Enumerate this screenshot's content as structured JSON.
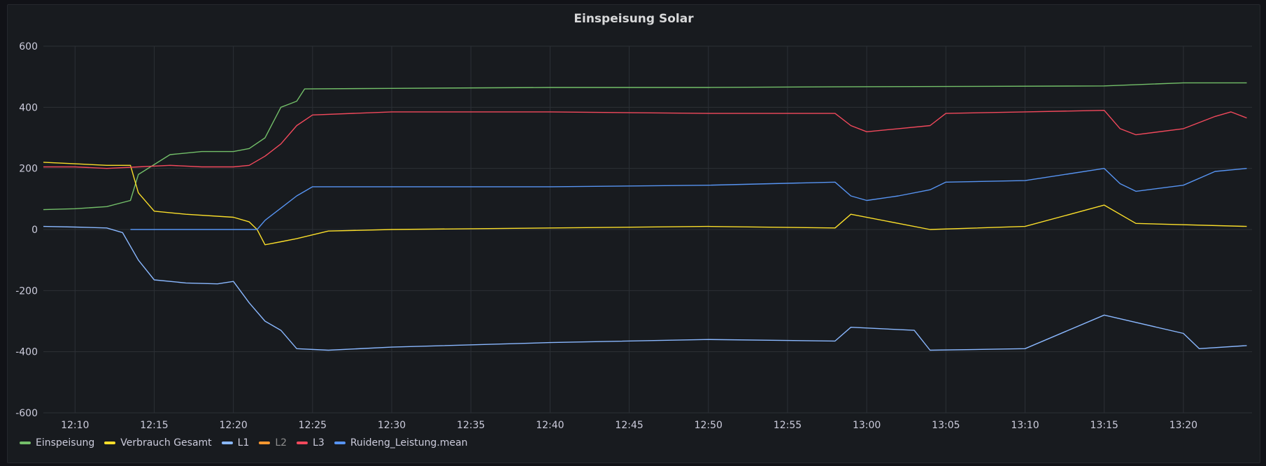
{
  "panel": {
    "title": "Einspeisung Solar"
  },
  "chart_data": {
    "type": "line",
    "title": "Einspeisung Solar",
    "xlabel": "",
    "ylabel": "",
    "ylim": [
      -600,
      600
    ],
    "yticks": [
      "600",
      "400",
      "200",
      "0",
      "-200",
      "-400",
      "-600"
    ],
    "xlim": [
      "12:08:00",
      "13:24:20"
    ],
    "xticks": [
      "12:10",
      "12:15",
      "12:20",
      "12:25",
      "12:30",
      "12:35",
      "12:40",
      "12:45",
      "12:50",
      "12:55",
      "13:00",
      "13:05",
      "13:10",
      "13:15",
      "13:20"
    ],
    "grid": true,
    "legend_position": "bottom-left",
    "series": [
      {
        "name": "Einspeisung",
        "color": "#73bf69",
        "x": [
          "12:08",
          "12:10",
          "12:12",
          "12:13:30",
          "12:14",
          "12:16",
          "12:18",
          "12:20",
          "12:21",
          "12:22",
          "12:22:30",
          "12:23",
          "12:23:30",
          "12:24",
          "12:24:30",
          "12:30",
          "12:40",
          "12:50",
          "12:58",
          "13:05",
          "13:15",
          "13:20",
          "13:24"
        ],
        "y": [
          65,
          68,
          75,
          95,
          180,
          245,
          255,
          255,
          265,
          300,
          350,
          400,
          410,
          420,
          460,
          462,
          465,
          465,
          467,
          468,
          470,
          480,
          480
        ]
      },
      {
        "name": "Verbrauch Gesamt",
        "color": "#fade2a",
        "x": [
          "12:08",
          "12:10",
          "12:12",
          "12:13:30",
          "12:14",
          "12:15",
          "12:17",
          "12:20",
          "12:21",
          "12:21:30",
          "12:22",
          "12:23",
          "12:24",
          "12:26",
          "12:30",
          "12:40",
          "12:50",
          "12:58",
          "12:59",
          "13:04",
          "13:10",
          "13:15",
          "13:17",
          "13:24"
        ],
        "y": [
          220,
          215,
          210,
          210,
          120,
          60,
          50,
          40,
          25,
          0,
          -50,
          -40,
          -30,
          -5,
          0,
          5,
          10,
          5,
          50,
          0,
          10,
          80,
          20,
          10
        ]
      },
      {
        "name": "L1",
        "color": "#8ab8ff",
        "x": [
          "12:08",
          "12:10",
          "12:12",
          "12:13",
          "12:14",
          "12:15",
          "12:17",
          "12:19",
          "12:20",
          "12:21",
          "12:22",
          "12:23",
          "12:24",
          "12:26",
          "12:30",
          "12:40",
          "12:50",
          "12:58",
          "12:59",
          "13:03",
          "13:04",
          "13:10",
          "13:15",
          "13:20",
          "13:21",
          "13:24"
        ],
        "y": [
          10,
          8,
          5,
          -10,
          -100,
          -165,
          -175,
          -178,
          -170,
          -240,
          -300,
          -330,
          -390,
          -395,
          -385,
          -370,
          -360,
          -365,
          -320,
          -330,
          -395,
          -390,
          -280,
          -340,
          -390,
          -380
        ]
      },
      {
        "name": "L2",
        "color": "#ff9830",
        "x": [],
        "y": []
      },
      {
        "name": "L3",
        "color": "#f2495c",
        "x": [
          "12:08",
          "12:10",
          "12:12",
          "12:14",
          "12:16",
          "12:18",
          "12:20",
          "12:21",
          "12:22",
          "12:23",
          "12:24",
          "12:25",
          "12:30",
          "12:40",
          "12:50",
          "12:58",
          "12:59",
          "13:00",
          "13:02",
          "13:04",
          "13:05",
          "13:10",
          "13:15",
          "13:16",
          "13:17",
          "13:20",
          "13:22",
          "13:23",
          "13:24"
        ],
        "y": [
          205,
          205,
          200,
          205,
          210,
          205,
          205,
          210,
          240,
          280,
          340,
          375,
          385,
          385,
          380,
          380,
          340,
          320,
          330,
          340,
          380,
          385,
          390,
          330,
          310,
          330,
          370,
          385,
          365
        ]
      },
      {
        "name": "Ruideng_Leistung.mean",
        "color": "#5794f2",
        "x": [
          "12:13:30",
          "12:21:30",
          "12:22",
          "12:23",
          "12:24",
          "12:25",
          "12:30",
          "12:40",
          "12:50",
          "12:58",
          "12:59",
          "13:00",
          "13:02",
          "13:04",
          "13:05",
          "13:10",
          "13:15",
          "13:16",
          "13:17",
          "13:20",
          "13:22",
          "13:24"
        ],
        "y": [
          0,
          0,
          30,
          70,
          110,
          140,
          140,
          140,
          145,
          155,
          110,
          95,
          110,
          130,
          155,
          160,
          200,
          150,
          125,
          145,
          190,
          200
        ]
      }
    ]
  },
  "legend": [
    {
      "label": "Einspeisung",
      "color": "#73bf69"
    },
    {
      "label": "Verbrauch Gesamt",
      "color": "#fade2a"
    },
    {
      "label": "L1",
      "color": "#8ab8ff"
    },
    {
      "label": "L2",
      "color": "#ff9830"
    },
    {
      "label": "L3",
      "color": "#f2495c"
    },
    {
      "label": "Ruideng_Leistung.mean",
      "color": "#5794f2"
    }
  ]
}
